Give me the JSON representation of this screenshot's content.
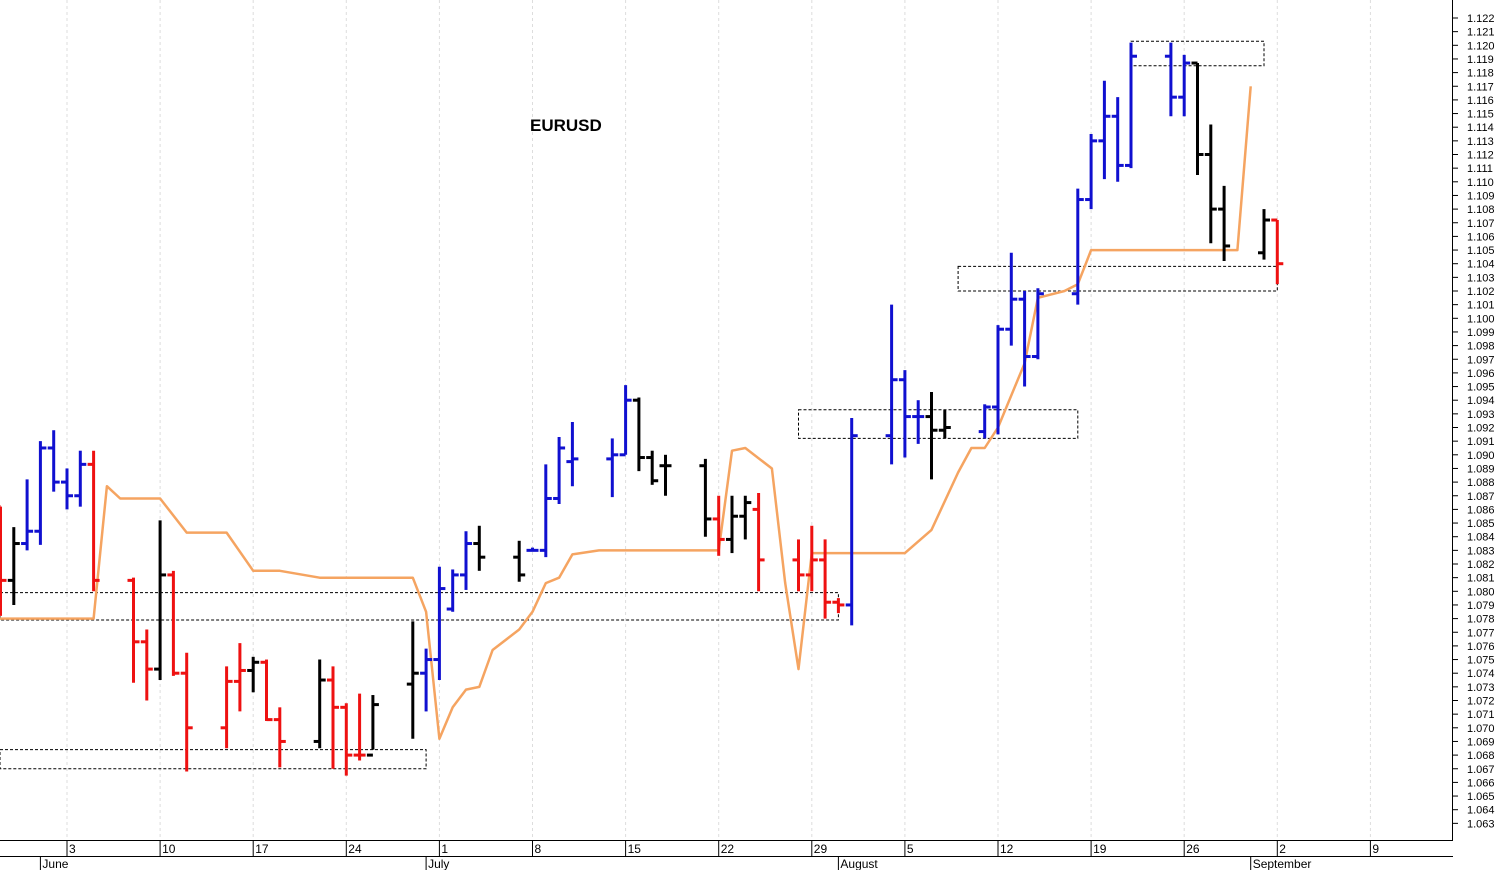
{
  "colors": {
    "up": "#1010d0",
    "down": "#ee1111",
    "neutral": "#000000",
    "line": "#f5a461",
    "grid": "#dddddd",
    "zone": "#000000"
  },
  "chart_data": {
    "type": "ohlc",
    "title": "EURUSD",
    "ylim": [
      1.0625,
      1.1225
    ],
    "y_ticks": [
      1.063,
      1.064,
      1.065,
      1.066,
      1.067,
      1.068,
      1.069,
      1.07,
      1.071,
      1.072,
      1.073,
      1.074,
      1.075,
      1.076,
      1.077,
      1.078,
      1.079,
      1.08,
      1.081,
      1.082,
      1.083,
      1.084,
      1.085,
      1.086,
      1.087,
      1.088,
      1.089,
      1.09,
      1.091,
      1.092,
      1.093,
      1.094,
      1.095,
      1.096,
      1.097,
      1.098,
      1.099,
      1.1,
      1.101,
      1.102,
      1.103,
      1.104,
      1.105,
      1.106,
      1.107,
      1.108,
      1.109,
      1.11,
      1.111,
      1.112,
      1.113,
      1.114,
      1.115,
      1.116,
      1.117,
      1.118,
      1.119,
      1.12,
      1.121,
      1.122
    ],
    "y_tick_labels": [
      "1.063",
      "1.064",
      "1.065",
      "1.066",
      "1.067",
      "1.068",
      "1.069",
      "1.070",
      "1.071",
      "1.072",
      "1.073",
      "1.074",
      "1.075",
      "1.076",
      "1.077",
      "1.078",
      "1.079",
      "1.080",
      "1.081",
      "1.082",
      "1.083",
      "1.084",
      "1.085",
      "1.086",
      "1.087",
      "1.088",
      "1.089",
      "1.090",
      "1.091",
      "1.092",
      "1.093",
      "1.094",
      "1.095",
      "1.096",
      "1.097",
      "1.098",
      "1.099",
      "1.100",
      "1.101",
      "1.102",
      "1.103",
      "1.104",
      "1.105",
      "1.106",
      "1.107",
      "1.108",
      "1.109",
      "1.110",
      "1.111",
      "1.112",
      "1.113",
      "1.114",
      "1.115",
      "1.116",
      "1.117",
      "1.118",
      "1.119",
      "1.120",
      "1.121",
      "1.122"
    ],
    "xlim": [
      -14,
      86
    ],
    "x_ticks": [
      {
        "day": 0,
        "label": "3"
      },
      {
        "day": 7,
        "label": "10"
      },
      {
        "day": 14,
        "label": "17"
      },
      {
        "day": 21,
        "label": "24"
      },
      {
        "day": 28,
        "label": "1"
      },
      {
        "day": 35,
        "label": "8"
      },
      {
        "day": 42,
        "label": "15"
      },
      {
        "day": 49,
        "label": "22"
      },
      {
        "day": 56,
        "label": "29"
      },
      {
        "day": 63,
        "label": "5"
      },
      {
        "day": 70,
        "label": "12"
      },
      {
        "day": 77,
        "label": "19"
      },
      {
        "day": 84,
        "label": "26"
      },
      {
        "day": 91,
        "label": "2"
      },
      {
        "day": 98,
        "label": "9"
      }
    ],
    "month_labels": [
      {
        "day": -2,
        "label": "June"
      },
      {
        "day": 27,
        "label": "July"
      },
      {
        "day": 58,
        "label": "August"
      },
      {
        "day": 89,
        "label": "September"
      }
    ],
    "bars": [
      {
        "day": -5,
        "o": 1.0862,
        "h": 1.0862,
        "l": 1.0782,
        "c": 1.0808,
        "color": "down"
      },
      {
        "day": -4,
        "o": 1.0808,
        "h": 1.0847,
        "l": 1.079,
        "c": 1.0835,
        "color": "neutral"
      },
      {
        "day": -3,
        "o": 1.0835,
        "h": 1.0882,
        "l": 1.083,
        "c": 1.0844,
        "color": "up"
      },
      {
        "day": -2,
        "o": 1.0844,
        "h": 1.091,
        "l": 1.0834,
        "c": 1.0905,
        "color": "up"
      },
      {
        "day": -1,
        "o": 1.0905,
        "h": 1.0918,
        "l": 1.0873,
        "c": 1.088,
        "color": "up"
      },
      {
        "day": 0,
        "o": 1.088,
        "h": 1.089,
        "l": 1.086,
        "c": 1.087,
        "color": "up"
      },
      {
        "day": 1,
        "o": 1.087,
        "h": 1.0903,
        "l": 1.0862,
        "c": 1.0893,
        "color": "up"
      },
      {
        "day": 2,
        "o": 1.0893,
        "h": 1.0903,
        "l": 1.08,
        "c": 1.0808,
        "color": "down"
      },
      {
        "day": 5,
        "o": 1.0808,
        "h": 1.081,
        "l": 1.0733,
        "c": 1.0763,
        "color": "down"
      },
      {
        "day": 6,
        "o": 1.0763,
        "h": 1.0772,
        "l": 1.072,
        "c": 1.0743,
        "color": "down"
      },
      {
        "day": 7,
        "o": 1.0743,
        "h": 1.0852,
        "l": 1.0735,
        "c": 1.0812,
        "color": "neutral"
      },
      {
        "day": 8,
        "o": 1.0812,
        "h": 1.0815,
        "l": 1.0738,
        "c": 1.074,
        "color": "down"
      },
      {
        "day": 9,
        "o": 1.074,
        "h": 1.0755,
        "l": 1.0668,
        "c": 1.07,
        "color": "down"
      },
      {
        "day": 12,
        "o": 1.07,
        "h": 1.0745,
        "l": 1.0685,
        "c": 1.0734,
        "color": "down"
      },
      {
        "day": 13,
        "o": 1.0734,
        "h": 1.0762,
        "l": 1.0712,
        "c": 1.0742,
        "color": "down"
      },
      {
        "day": 14,
        "o": 1.0742,
        "h": 1.0752,
        "l": 1.0726,
        "c": 1.0748,
        "color": "neutral"
      },
      {
        "day": 15,
        "o": 1.0748,
        "h": 1.075,
        "l": 1.0705,
        "c": 1.0706,
        "color": "down"
      },
      {
        "day": 16,
        "o": 1.0706,
        "h": 1.0715,
        "l": 1.0671,
        "c": 1.069,
        "color": "down"
      },
      {
        "day": 19,
        "o": 1.069,
        "h": 1.075,
        "l": 1.0685,
        "c": 1.0735,
        "color": "neutral"
      },
      {
        "day": 20,
        "o": 1.0735,
        "h": 1.0745,
        "l": 1.067,
        "c": 1.0715,
        "color": "down"
      },
      {
        "day": 21,
        "o": 1.0715,
        "h": 1.0718,
        "l": 1.0665,
        "c": 1.068,
        "color": "down"
      },
      {
        "day": 22,
        "o": 1.068,
        "h": 1.0725,
        "l": 1.0676,
        "c": 1.068,
        "color": "down"
      },
      {
        "day": 23,
        "o": 1.068,
        "h": 1.0724,
        "l": 1.0684,
        "c": 1.0717,
        "color": "neutral"
      },
      {
        "day": 26,
        "o": 1.0732,
        "h": 1.0778,
        "l": 1.0692,
        "c": 1.074,
        "color": "neutral"
      },
      {
        "day": 27,
        "o": 1.074,
        "h": 1.0758,
        "l": 1.0712,
        "c": 1.075,
        "color": "up"
      },
      {
        "day": 28,
        "o": 1.075,
        "h": 1.0818,
        "l": 1.0735,
        "c": 1.0802,
        "color": "up"
      },
      {
        "day": 29,
        "o": 1.0787,
        "h": 1.0816,
        "l": 1.0785,
        "c": 1.0812,
        "color": "up"
      },
      {
        "day": 30,
        "o": 1.0812,
        "h": 1.0844,
        "l": 1.0801,
        "c": 1.0835,
        "color": "up"
      },
      {
        "day": 31,
        "o": 1.0835,
        "h": 1.0848,
        "l": 1.0815,
        "c": 1.0825,
        "color": "neutral"
      },
      {
        "day": 34,
        "o": 1.0825,
        "h": 1.0837,
        "l": 1.0807,
        "c": 1.0812,
        "color": "neutral"
      },
      {
        "day": 35,
        "o": 1.083,
        "h": 1.0832,
        "l": 1.083,
        "c": 1.083,
        "color": "up"
      },
      {
        "day": 36,
        "o": 1.083,
        "h": 1.0893,
        "l": 1.0825,
        "c": 1.0868,
        "color": "up"
      },
      {
        "day": 37,
        "o": 1.0868,
        "h": 1.0913,
        "l": 1.0864,
        "c": 1.0905,
        "color": "up"
      },
      {
        "day": 38,
        "o": 1.0895,
        "h": 1.0924,
        "l": 1.0877,
        "c": 1.0897,
        "color": "up"
      },
      {
        "day": 41,
        "o": 1.0897,
        "h": 1.0912,
        "l": 1.0869,
        "c": 1.09,
        "color": "up"
      },
      {
        "day": 42,
        "o": 1.09,
        "h": 1.0951,
        "l": 1.09,
        "c": 1.094,
        "color": "up"
      },
      {
        "day": 43,
        "o": 1.094,
        "h": 1.0942,
        "l": 1.0888,
        "c": 1.0898,
        "color": "neutral"
      },
      {
        "day": 44,
        "o": 1.0898,
        "h": 1.0903,
        "l": 1.0878,
        "c": 1.0881,
        "color": "neutral"
      },
      {
        "day": 45,
        "o": 1.0892,
        "h": 1.09,
        "l": 1.087,
        "c": 1.0892,
        "color": "neutral"
      },
      {
        "day": 48,
        "o": 1.0892,
        "h": 1.0897,
        "l": 1.084,
        "c": 1.0853,
        "color": "neutral"
      },
      {
        "day": 49,
        "o": 1.0853,
        "h": 1.087,
        "l": 1.0826,
        "c": 1.0838,
        "color": "down"
      },
      {
        "day": 50,
        "o": 1.0838,
        "h": 1.087,
        "l": 1.0828,
        "c": 1.0855,
        "color": "neutral"
      },
      {
        "day": 51,
        "o": 1.0855,
        "h": 1.087,
        "l": 1.0838,
        "c": 1.0865,
        "color": "neutral"
      },
      {
        "day": 52,
        "o": 1.086,
        "h": 1.0872,
        "l": 1.08,
        "c": 1.0823,
        "color": "down"
      },
      {
        "day": 55,
        "o": 1.0823,
        "h": 1.0838,
        "l": 1.08,
        "c": 1.0812,
        "color": "down"
      },
      {
        "day": 56,
        "o": 1.0812,
        "h": 1.0848,
        "l": 1.08,
        "c": 1.0823,
        "color": "down"
      },
      {
        "day": 57,
        "o": 1.0823,
        "h": 1.0838,
        "l": 1.078,
        "c": 1.0792,
        "color": "down"
      },
      {
        "day": 58,
        "o": 1.0792,
        "h": 1.0795,
        "l": 1.0784,
        "c": 1.079,
        "color": "down"
      },
      {
        "day": 59,
        "o": 1.079,
        "h": 1.0927,
        "l": 1.0775,
        "c": 1.0914,
        "color": "up"
      },
      {
        "day": 62,
        "o": 1.0914,
        "h": 1.101,
        "l": 1.0893,
        "c": 1.0955,
        "color": "up"
      },
      {
        "day": 63,
        "o": 1.0955,
        "h": 1.0962,
        "l": 1.0898,
        "c": 1.0928,
        "color": "up"
      },
      {
        "day": 64,
        "o": 1.0928,
        "h": 1.094,
        "l": 1.0908,
        "c": 1.0928,
        "color": "up"
      },
      {
        "day": 65,
        "o": 1.0928,
        "h": 1.0946,
        "l": 1.0882,
        "c": 1.0918,
        "color": "neutral"
      },
      {
        "day": 66,
        "o": 1.0918,
        "h": 1.0933,
        "l": 1.0912,
        "c": 1.092,
        "color": "neutral"
      },
      {
        "day": 69,
        "o": 1.0917,
        "h": 1.0937,
        "l": 1.0912,
        "c": 1.0935,
        "color": "up"
      },
      {
        "day": 70,
        "o": 1.0935,
        "h": 1.0995,
        "l": 1.0915,
        "c": 1.0992,
        "color": "up"
      },
      {
        "day": 71,
        "o": 1.0992,
        "h": 1.1048,
        "l": 1.098,
        "c": 1.1014,
        "color": "up"
      },
      {
        "day": 72,
        "o": 1.1014,
        "h": 1.102,
        "l": 1.095,
        "c": 1.0972,
        "color": "up"
      },
      {
        "day": 73,
        "o": 1.0972,
        "h": 1.1022,
        "l": 1.097,
        "c": 1.1018,
        "color": "up"
      },
      {
        "day": 76,
        "o": 1.1018,
        "h": 1.1095,
        "l": 1.101,
        "c": 1.1087,
        "color": "up"
      },
      {
        "day": 77,
        "o": 1.1087,
        "h": 1.1135,
        "l": 1.108,
        "c": 1.113,
        "color": "up"
      },
      {
        "day": 78,
        "o": 1.113,
        "h": 1.1174,
        "l": 1.1102,
        "c": 1.1148,
        "color": "up"
      },
      {
        "day": 79,
        "o": 1.1148,
        "h": 1.1162,
        "l": 1.11,
        "c": 1.1112,
        "color": "up"
      },
      {
        "day": 80,
        "o": 1.1112,
        "h": 1.1202,
        "l": 1.111,
        "c": 1.1192,
        "color": "up"
      },
      {
        "day": 83,
        "o": 1.1192,
        "h": 1.1202,
        "l": 1.1148,
        "c": 1.1162,
        "color": "up"
      },
      {
        "day": 84,
        "o": 1.1162,
        "h": 1.1193,
        "l": 1.1148,
        "c": 1.1187,
        "color": "up"
      },
      {
        "day": 85,
        "o": 1.1187,
        "h": 1.1187,
        "l": 1.1105,
        "c": 1.112,
        "color": "neutral"
      },
      {
        "day": 86,
        "o": 1.112,
        "h": 1.1142,
        "l": 1.1055,
        "c": 1.108,
        "color": "neutral"
      },
      {
        "day": 87,
        "o": 1.108,
        "h": 1.1097,
        "l": 1.1042,
        "c": 1.1053,
        "color": "neutral"
      },
      {
        "day": 90,
        "o": 1.1048,
        "h": 1.108,
        "l": 1.1043,
        "c": 1.1072,
        "color": "neutral"
      },
      {
        "day": 91,
        "o": 1.1072,
        "h": 1.1072,
        "l": 1.1025,
        "c": 1.104,
        "color": "down"
      }
    ],
    "line": [
      [
        -14,
        1.078
      ],
      [
        2,
        1.078
      ],
      [
        3,
        1.0877
      ],
      [
        4,
        1.0868
      ],
      [
        7,
        1.0868
      ],
      [
        9,
        1.0843
      ],
      [
        12,
        1.0843
      ],
      [
        14,
        1.0815
      ],
      [
        16,
        1.0815
      ],
      [
        19,
        1.081
      ],
      [
        26,
        1.081
      ],
      [
        27,
        1.0785
      ],
      [
        28,
        1.0692
      ],
      [
        29,
        1.0715
      ],
      [
        30,
        1.0728
      ],
      [
        31,
        1.073
      ],
      [
        32,
        1.0757
      ],
      [
        34,
        1.0772
      ],
      [
        35,
        1.0785
      ],
      [
        36,
        1.0806
      ],
      [
        37,
        1.081
      ],
      [
        38,
        1.0827
      ],
      [
        40,
        1.083
      ],
      [
        45,
        1.083
      ],
      [
        49,
        1.083
      ],
      [
        50,
        1.0903
      ],
      [
        51,
        1.0905
      ],
      [
        53,
        1.089
      ],
      [
        54,
        1.0806
      ],
      [
        55,
        1.0743
      ],
      [
        56,
        1.0828
      ],
      [
        57,
        1.0828
      ],
      [
        63,
        1.0828
      ],
      [
        65,
        1.0845
      ],
      [
        67,
        1.0887
      ],
      [
        68,
        1.0905
      ],
      [
        69,
        1.0905
      ],
      [
        70,
        1.092
      ],
      [
        72,
        1.0967
      ],
      [
        73,
        1.1015
      ],
      [
        75,
        1.102
      ],
      [
        76,
        1.1025
      ],
      [
        77,
        1.105
      ],
      [
        78,
        1.105
      ],
      [
        87,
        1.105
      ],
      [
        88,
        1.105
      ],
      [
        89,
        1.117
      ]
    ],
    "zones": [
      {
        "x0": 80,
        "x1": 90,
        "y0": 1.1185,
        "y1": 1.1203
      },
      {
        "x0": 67,
        "x1": 91,
        "y0": 1.102,
        "y1": 1.1038
      },
      {
        "x0": 55,
        "x1": 76,
        "y0": 1.0912,
        "y1": 1.0933
      },
      {
        "x0": -14,
        "x1": 58,
        "y0": 1.0779,
        "y1": 1.0799
      },
      {
        "x0": -14,
        "x1": 27,
        "y0": 1.067,
        "y1": 1.0684
      }
    ]
  }
}
